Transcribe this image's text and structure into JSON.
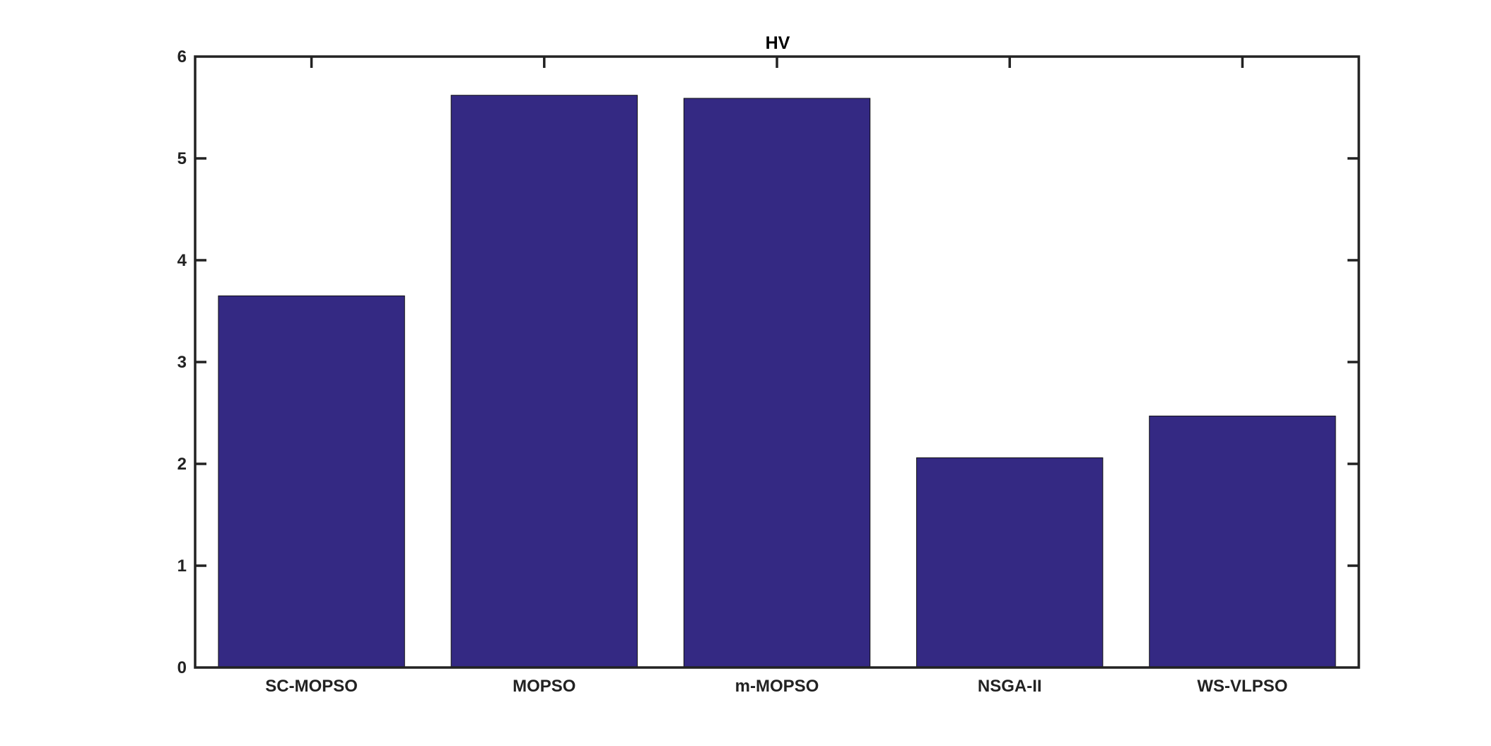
{
  "chart_data": {
    "type": "bar",
    "title": "HV",
    "xlabel": "",
    "ylabel": "",
    "categories": [
      "SC-MOPSO",
      "MOPSO",
      "m-MOPSO",
      "NSGA-II",
      "WS-VLPSO"
    ],
    "values": [
      3.65,
      5.62,
      5.59,
      2.06,
      2.47
    ],
    "ylim": [
      0,
      6
    ],
    "yticks": [
      "0",
      "1",
      "2",
      "3",
      "4",
      "5",
      "6"
    ],
    "grid": false,
    "legend": "none",
    "colors": {
      "bar_fill": "#342983",
      "axis": "#222222"
    }
  }
}
